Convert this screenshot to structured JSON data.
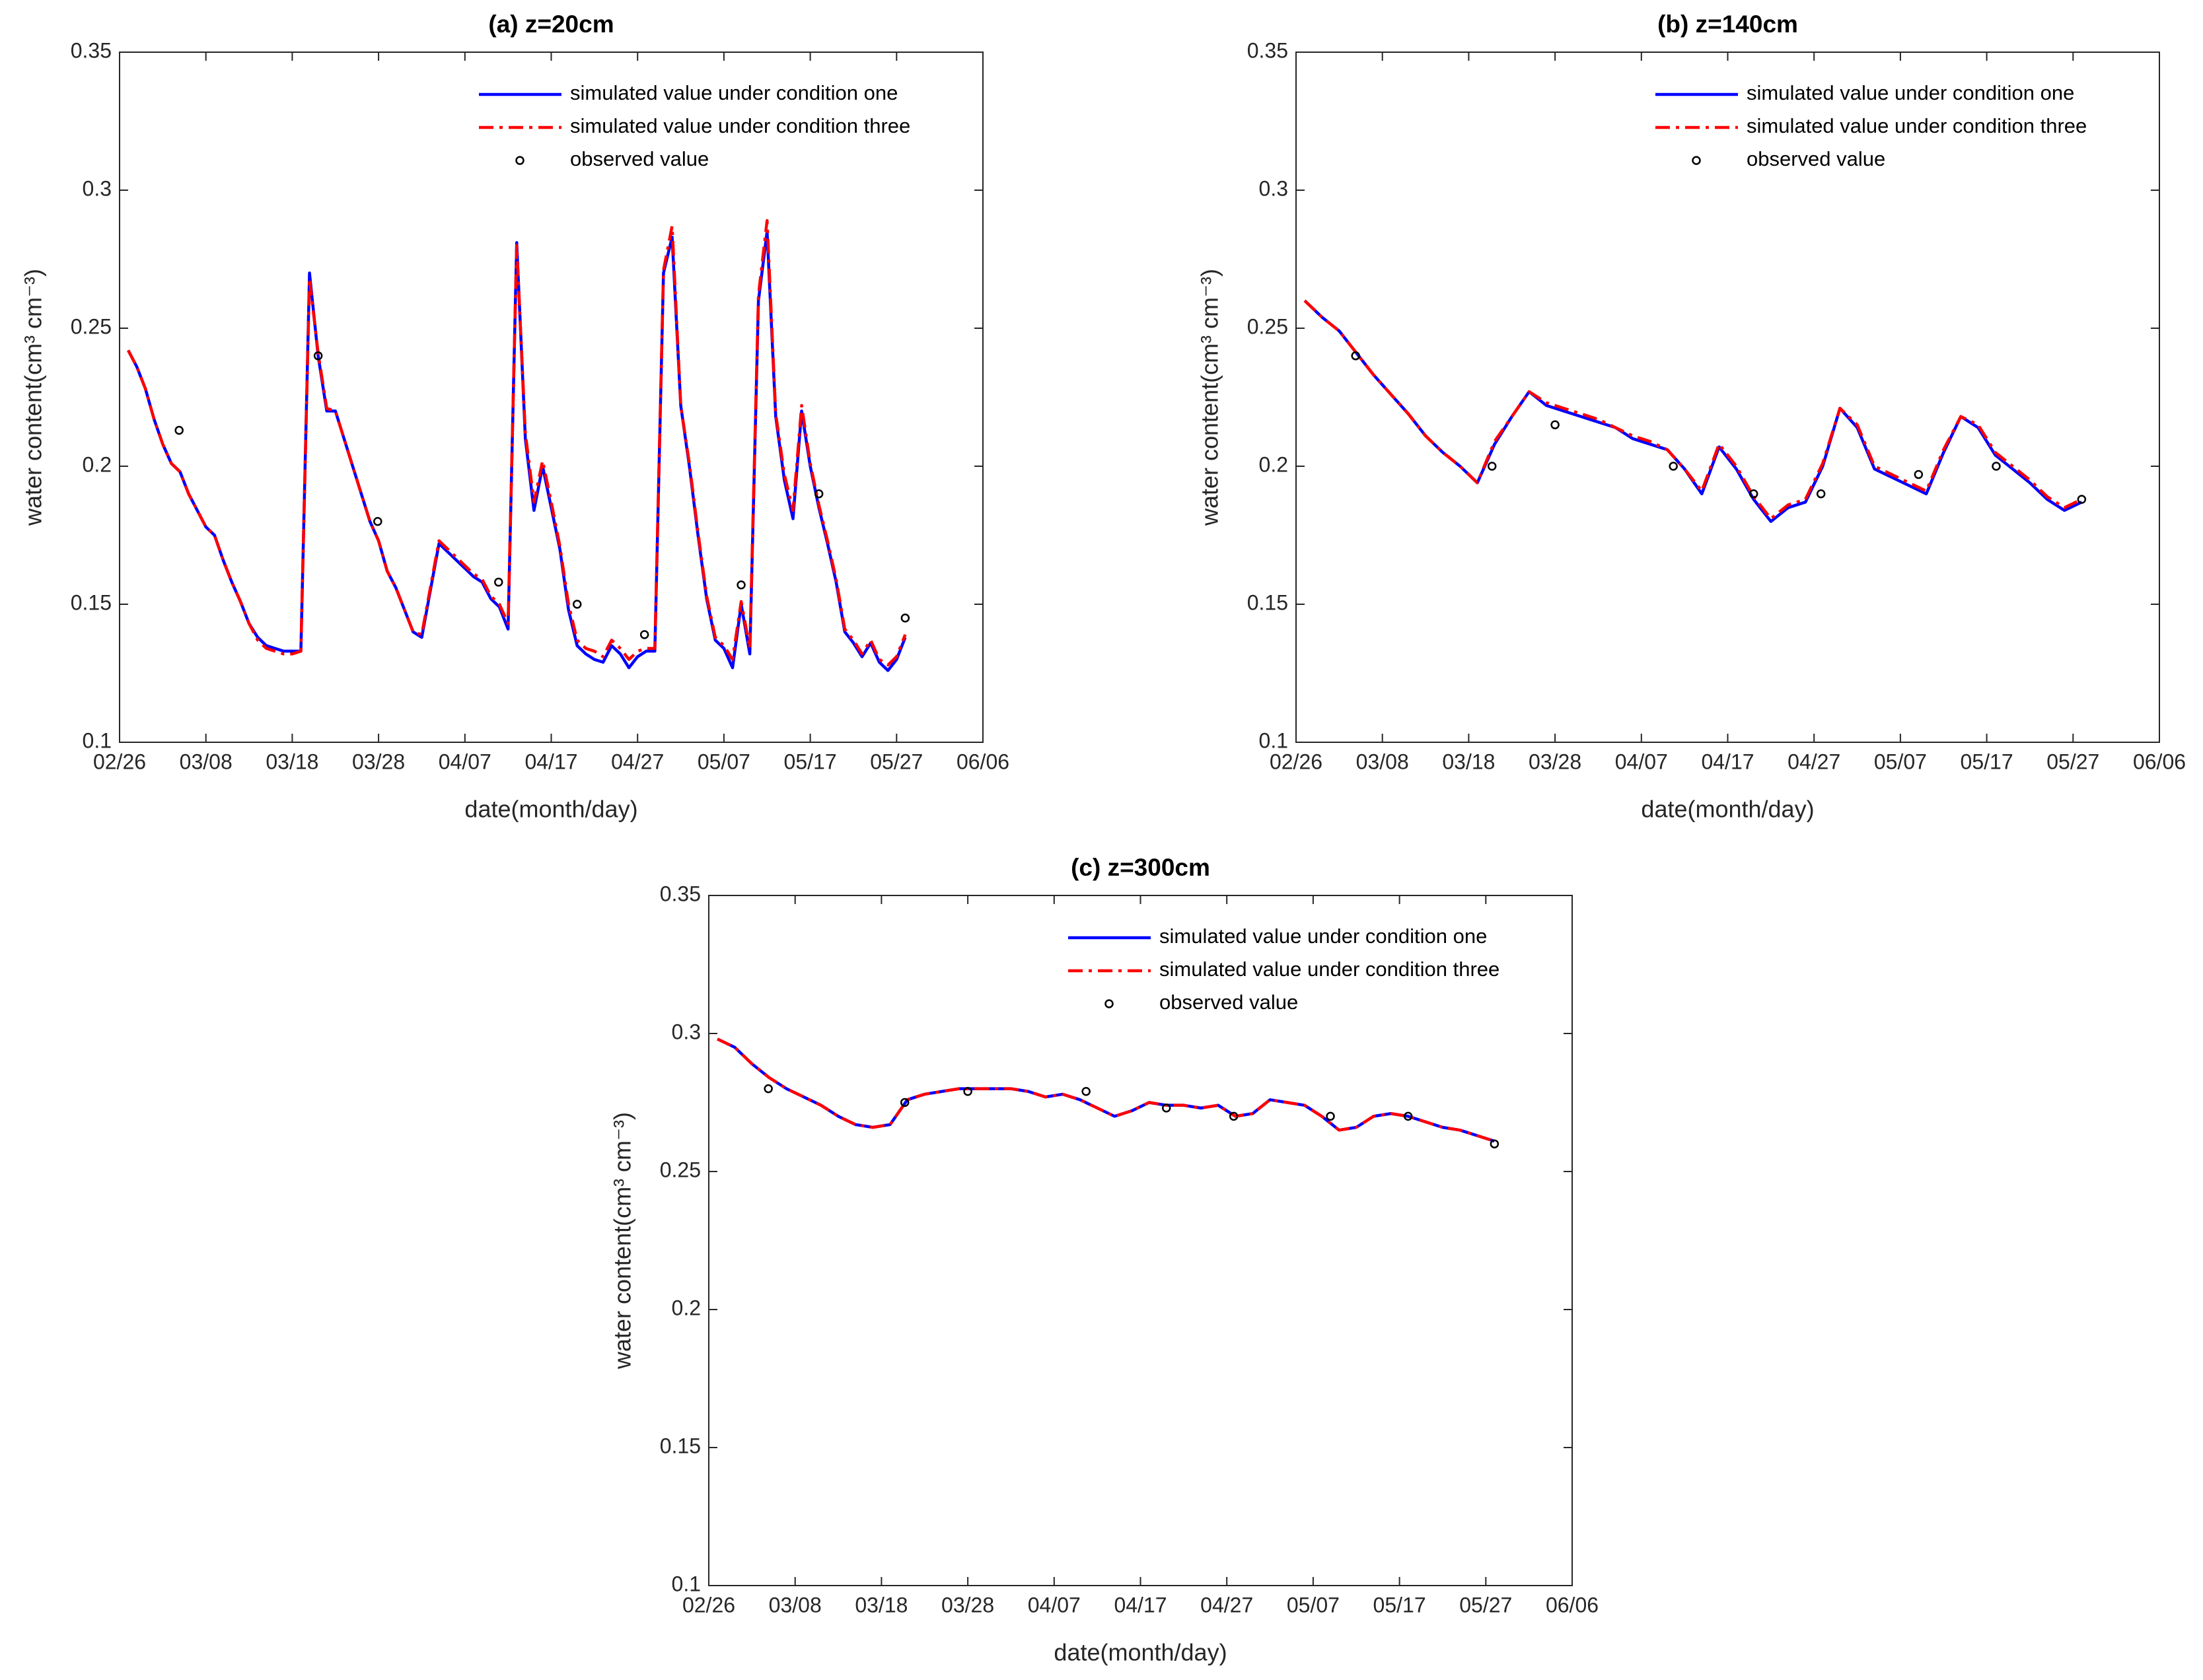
{
  "chart_data": [
    {
      "type": "line",
      "title": "(a) z=20cm",
      "xlabel": "date(month/day)",
      "ylabel": "water content(cm³ cm⁻³)",
      "legend": "upper right",
      "xlim": [
        0,
        100
      ],
      "ylim": [
        0.1,
        0.35
      ],
      "xticks": [
        {
          "value": 0,
          "label": "02/26"
        },
        {
          "value": 10,
          "label": "03/08"
        },
        {
          "value": 20,
          "label": "03/18"
        },
        {
          "value": 30,
          "label": "03/28"
        },
        {
          "value": 40,
          "label": "04/07"
        },
        {
          "value": 50,
          "label": "04/17"
        },
        {
          "value": 60,
          "label": "04/27"
        },
        {
          "value": 70,
          "label": "05/07"
        },
        {
          "value": 80,
          "label": "05/17"
        },
        {
          "value": 90,
          "label": "05/27"
        },
        {
          "value": 100,
          "label": "06/06"
        }
      ],
      "yticks": [
        0.1,
        0.15,
        0.2,
        0.25,
        0.3,
        0.35
      ],
      "x": [
        1,
        2,
        3,
        4,
        5,
        6,
        7,
        8,
        9,
        10,
        11,
        12,
        13,
        14,
        15,
        16,
        17,
        18,
        19,
        20,
        21,
        22,
        23,
        24,
        25,
        26,
        27,
        28,
        29,
        30,
        31,
        32,
        33,
        34,
        35,
        36,
        37,
        38,
        39,
        40,
        41,
        42,
        43,
        44,
        45,
        46,
        47,
        48,
        49,
        50,
        51,
        52,
        53,
        54,
        55,
        56,
        57,
        58,
        59,
        60,
        61,
        62,
        63,
        64,
        65,
        66,
        67,
        68,
        69,
        70,
        71,
        72,
        73,
        74,
        75,
        76,
        77,
        78,
        79,
        80,
        81,
        82,
        83,
        84,
        85,
        86,
        87,
        88,
        89,
        90,
        91
      ],
      "series": [
        {
          "name": "simulated value under condition one",
          "color": "#0000ff",
          "style": "solid",
          "values": [
            0.242,
            0.236,
            0.228,
            0.217,
            0.208,
            0.201,
            0.198,
            0.19,
            0.184,
            0.178,
            0.175,
            0.166,
            0.158,
            0.151,
            0.143,
            0.138,
            0.135,
            0.134,
            0.133,
            0.133,
            0.133,
            0.27,
            0.24,
            0.22,
            0.22,
            0.21,
            0.2,
            0.19,
            0.18,
            0.173,
            0.162,
            0.156,
            0.148,
            0.14,
            0.138,
            0.155,
            0.172,
            0.169,
            0.166,
            0.163,
            0.16,
            0.158,
            0.152,
            0.149,
            0.141,
            0.281,
            0.21,
            0.184,
            0.2,
            0.185,
            0.17,
            0.148,
            0.135,
            0.132,
            0.13,
            0.129,
            0.135,
            0.132,
            0.127,
            0.131,
            0.133,
            0.133,
            0.27,
            0.283,
            0.222,
            0.2,
            0.175,
            0.152,
            0.137,
            0.134,
            0.127,
            0.15,
            0.132,
            0.26,
            0.285,
            0.218,
            0.195,
            0.181,
            0.22,
            0.2,
            0.185,
            0.172,
            0.158,
            0.14,
            0.136,
            0.131,
            0.136,
            0.129,
            0.126,
            0.13,
            0.138
          ]
        },
        {
          "name": "simulated value under condition three",
          "color": "#ff0000",
          "style": "dashdot",
          "values": [
            0.242,
            0.236,
            0.228,
            0.217,
            0.208,
            0.201,
            0.198,
            0.19,
            0.184,
            0.178,
            0.175,
            0.166,
            0.158,
            0.151,
            0.143,
            0.137,
            0.134,
            0.133,
            0.132,
            0.132,
            0.133,
            0.268,
            0.241,
            0.221,
            0.22,
            0.21,
            0.2,
            0.19,
            0.18,
            0.173,
            0.162,
            0.156,
            0.148,
            0.14,
            0.139,
            0.156,
            0.173,
            0.17,
            0.167,
            0.164,
            0.161,
            0.159,
            0.153,
            0.15,
            0.143,
            0.28,
            0.212,
            0.187,
            0.202,
            0.187,
            0.171,
            0.15,
            0.137,
            0.134,
            0.133,
            0.131,
            0.137,
            0.134,
            0.13,
            0.133,
            0.134,
            0.134,
            0.271,
            0.287,
            0.222,
            0.201,
            0.176,
            0.153,
            0.138,
            0.135,
            0.13,
            0.151,
            0.134,
            0.262,
            0.289,
            0.219,
            0.197,
            0.184,
            0.222,
            0.201,
            0.186,
            0.173,
            0.159,
            0.141,
            0.137,
            0.132,
            0.137,
            0.13,
            0.128,
            0.131,
            0.139
          ]
        },
        {
          "name": "observed value",
          "color": "#000000",
          "style": "marker",
          "x": [
            6.9,
            23,
            29.9,
            43.9,
            53,
            60.8,
            72,
            81,
            91
          ],
          "values": [
            0.213,
            0.24,
            0.18,
            0.158,
            0.15,
            0.139,
            0.157,
            0.19,
            0.145
          ]
        }
      ]
    },
    {
      "type": "line",
      "title": "(b) z=140cm",
      "xlabel": "date(month/day)",
      "ylabel": "water content(cm³ cm⁻³)",
      "legend": "upper right",
      "xlim": [
        0,
        100
      ],
      "ylim": [
        0.1,
        0.35
      ],
      "xticks": [
        {
          "value": 0,
          "label": "02/26"
        },
        {
          "value": 10,
          "label": "03/08"
        },
        {
          "value": 20,
          "label": "03/18"
        },
        {
          "value": 30,
          "label": "03/28"
        },
        {
          "value": 40,
          "label": "04/07"
        },
        {
          "value": 50,
          "label": "04/17"
        },
        {
          "value": 60,
          "label": "04/27"
        },
        {
          "value": 70,
          "label": "05/07"
        },
        {
          "value": 80,
          "label": "05/17"
        },
        {
          "value": 90,
          "label": "05/27"
        },
        {
          "value": 100,
          "label": "06/06"
        }
      ],
      "yticks": [
        0.1,
        0.15,
        0.2,
        0.25,
        0.3,
        0.35
      ],
      "x": [
        1,
        3,
        5,
        7,
        9,
        11,
        13,
        15,
        17,
        19,
        21,
        23,
        25,
        27,
        29,
        31,
        33,
        35,
        37,
        39,
        41,
        43,
        45,
        47,
        49,
        51,
        53,
        55,
        57,
        59,
        61,
        63,
        65,
        67,
        69,
        71,
        73,
        75,
        77,
        79,
        81,
        83,
        85,
        87,
        89,
        91
      ],
      "series": [
        {
          "name": "simulated value under condition one",
          "color": "#0000ff",
          "style": "solid",
          "values": [
            0.26,
            0.254,
            0.249,
            0.241,
            0.233,
            0.226,
            0.219,
            0.211,
            0.205,
            0.2,
            0.194,
            0.208,
            0.218,
            0.227,
            0.222,
            0.22,
            0.218,
            0.216,
            0.214,
            0.21,
            0.208,
            0.206,
            0.199,
            0.19,
            0.207,
            0.199,
            0.188,
            0.18,
            0.185,
            0.187,
            0.2,
            0.221,
            0.214,
            0.199,
            0.196,
            0.193,
            0.19,
            0.205,
            0.218,
            0.214,
            0.204,
            0.199,
            0.194,
            0.188,
            0.184,
            0.187
          ]
        },
        {
          "name": "simulated value under condition three",
          "color": "#ff0000",
          "style": "dashdot",
          "values": [
            0.26,
            0.254,
            0.249,
            0.241,
            0.233,
            0.226,
            0.219,
            0.211,
            0.205,
            0.2,
            0.194,
            0.209,
            0.218,
            0.227,
            0.223,
            0.221,
            0.219,
            0.217,
            0.214,
            0.211,
            0.209,
            0.206,
            0.199,
            0.191,
            0.208,
            0.2,
            0.189,
            0.181,
            0.186,
            0.188,
            0.201,
            0.221,
            0.215,
            0.2,
            0.197,
            0.194,
            0.191,
            0.206,
            0.218,
            0.215,
            0.205,
            0.2,
            0.195,
            0.189,
            0.185,
            0.188
          ]
        },
        {
          "name": "observed value",
          "color": "#000000",
          "style": "marker",
          "x": [
            6.9,
            22.7,
            30,
            43.7,
            53,
            60.8,
            72.1,
            81.1,
            91
          ],
          "values": [
            0.24,
            0.2,
            0.215,
            0.2,
            0.19,
            0.19,
            0.197,
            0.2,
            0.188
          ]
        }
      ]
    },
    {
      "type": "line",
      "title": "(c) z=300cm",
      "xlabel": "date(month/day)",
      "ylabel": "water content(cm³ cm⁻³)",
      "legend": "upper right",
      "xlim": [
        0,
        100
      ],
      "ylim": [
        0.1,
        0.35
      ],
      "xticks": [
        {
          "value": 0,
          "label": "02/26"
        },
        {
          "value": 10,
          "label": "03/08"
        },
        {
          "value": 20,
          "label": "03/18"
        },
        {
          "value": 30,
          "label": "03/28"
        },
        {
          "value": 40,
          "label": "04/07"
        },
        {
          "value": 50,
          "label": "04/17"
        },
        {
          "value": 60,
          "label": "04/27"
        },
        {
          "value": 70,
          "label": "05/07"
        },
        {
          "value": 80,
          "label": "05/17"
        },
        {
          "value": 90,
          "label": "05/27"
        },
        {
          "value": 100,
          "label": "06/06"
        }
      ],
      "yticks": [
        0.1,
        0.15,
        0.2,
        0.25,
        0.3,
        0.35
      ],
      "x": [
        1,
        3,
        5,
        7,
        9,
        11,
        13,
        15,
        17,
        19,
        21,
        23,
        25,
        27,
        29,
        31,
        33,
        35,
        37,
        39,
        41,
        43,
        45,
        47,
        49,
        51,
        53,
        55,
        57,
        59,
        61,
        63,
        65,
        67,
        69,
        71,
        73,
        75,
        77,
        79,
        81,
        83,
        85,
        87,
        89,
        91
      ],
      "series": [
        {
          "name": "simulated value under condition one",
          "color": "#0000ff",
          "style": "solid",
          "values": [
            0.298,
            0.295,
            0.289,
            0.284,
            0.28,
            0.277,
            0.274,
            0.27,
            0.267,
            0.266,
            0.267,
            0.276,
            0.278,
            0.279,
            0.28,
            0.28,
            0.28,
            0.28,
            0.279,
            0.277,
            0.278,
            0.276,
            0.273,
            0.27,
            0.272,
            0.275,
            0.274,
            0.274,
            0.273,
            0.274,
            0.27,
            0.271,
            0.276,
            0.275,
            0.274,
            0.27,
            0.265,
            0.266,
            0.27,
            0.271,
            0.27,
            0.268,
            0.266,
            0.265,
            0.263,
            0.261
          ]
        },
        {
          "name": "simulated value under condition three",
          "color": "#ff0000",
          "style": "dashdot",
          "values": [
            0.298,
            0.295,
            0.289,
            0.284,
            0.28,
            0.277,
            0.274,
            0.27,
            0.267,
            0.266,
            0.267,
            0.276,
            0.278,
            0.279,
            0.28,
            0.28,
            0.28,
            0.28,
            0.279,
            0.277,
            0.278,
            0.276,
            0.273,
            0.27,
            0.272,
            0.275,
            0.274,
            0.274,
            0.273,
            0.274,
            0.27,
            0.271,
            0.276,
            0.275,
            0.274,
            0.27,
            0.265,
            0.266,
            0.27,
            0.271,
            0.27,
            0.268,
            0.266,
            0.265,
            0.263,
            0.261
          ]
        },
        {
          "name": "observed value",
          "color": "#000000",
          "style": "marker",
          "x": [
            6.9,
            22.7,
            30,
            43.7,
            53,
            60.8,
            72,
            81,
            91
          ],
          "values": [
            0.28,
            0.275,
            0.279,
            0.279,
            0.273,
            0.27,
            0.27,
            0.27,
            0.26
          ]
        }
      ]
    }
  ]
}
